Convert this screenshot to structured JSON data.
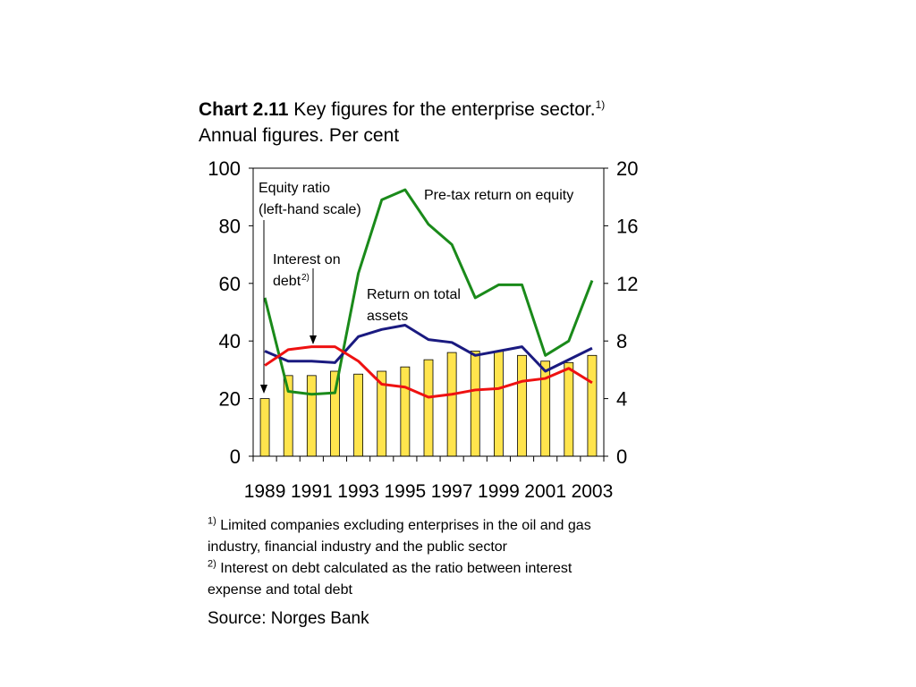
{
  "title": {
    "bold": "Chart 2.11",
    "text": " Key figures for the enterprise sector.",
    "sup": "1)",
    "line2": "Annual figures. Per cent"
  },
  "chart_data": {
    "type": "bar",
    "categories": [
      "1989",
      "1990",
      "1991",
      "1992",
      "1993",
      "1994",
      "1995",
      "1996",
      "1997",
      "1998",
      "1999",
      "2000",
      "2001",
      "2002",
      "2003"
    ],
    "x_tick_labels": [
      "1989",
      "1991",
      "1993",
      "1995",
      "1997",
      "1999",
      "2001",
      "2003"
    ],
    "left_axis": {
      "ylim": [
        0,
        100
      ],
      "ticks": [
        0,
        20,
        40,
        60,
        80,
        100
      ]
    },
    "right_axis": {
      "ylim": [
        0,
        20
      ],
      "ticks": [
        0,
        4,
        8,
        12,
        16,
        20
      ]
    },
    "grid": false,
    "series": [
      {
        "axis": "left",
        "kind": "bar",
        "color": "#FFE44D",
        "values": [
          20,
          28,
          28,
          29.5,
          28.5,
          29.5,
          31,
          33.5,
          36,
          36.5,
          36.5,
          35,
          33,
          32.5,
          35
        ]
      },
      {
        "axis": "right",
        "kind": "line",
        "color": "#1A8A1A",
        "values": [
          11,
          4.5,
          4.3,
          4.4,
          12.7,
          17.8,
          18.5,
          16.1,
          14.7,
          11,
          11.9,
          11.9,
          7,
          8,
          12.2
        ]
      },
      {
        "axis": "right",
        "kind": "line",
        "color": "#1A1A80",
        "values": [
          7.3,
          6.6,
          6.6,
          6.5,
          8.3,
          8.8,
          9.1,
          8.1,
          7.9,
          7,
          7.3,
          7.6,
          5.9,
          6.7,
          7.5
        ]
      },
      {
        "axis": "right",
        "kind": "line",
        "color": "#EE1111",
        "values": [
          6.3,
          7.4,
          7.6,
          7.6,
          6.6,
          5,
          4.8,
          4.1,
          4.3,
          4.6,
          4.7,
          5.2,
          5.4,
          6.1,
          5.1
        ]
      }
    ],
    "annotations": {
      "equity_ratio": [
        "Equity ratio",
        "(left-hand scale)"
      ],
      "interest_on_debt": [
        "Interest on",
        "debt"
      ],
      "interest_sup": "2)",
      "pretax_return": "Pre-tax return on equity",
      "return_on_assets": [
        "Return on total",
        "assets"
      ]
    }
  },
  "notes": {
    "note1_sup": "1)",
    "note1": " Limited companies excluding enterprises in the oil and gas industry, financial industry and the public sector",
    "note2_sup": "2)",
    "note2": " Interest on debt calculated as the ratio between interest expense and total debt"
  },
  "source": "Source: Norges Bank"
}
